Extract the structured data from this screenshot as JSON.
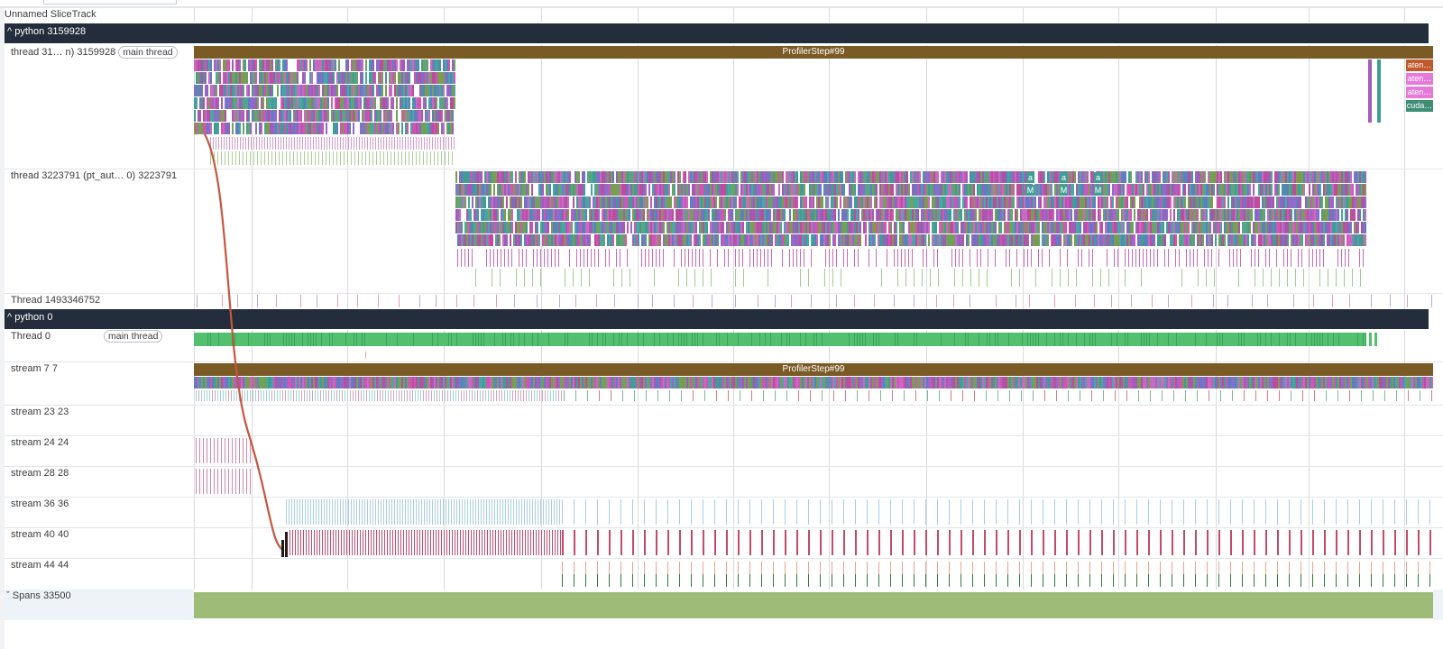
{
  "tracks": {
    "unnamed": "Unnamed SliceTrack",
    "python_main_group": "python 3159928",
    "main_thread_label": "thread 31… n) 3159928",
    "main_thread_pill": "main thread",
    "autograd_thread_label": "thread 3223791 (pt_aut… 0) 3223791",
    "thread_num_label": "Thread 1493346752",
    "python0_group": "python 0",
    "thread0_label": "Thread 0",
    "thread0_pill": "main thread",
    "stream7": "stream 7 7",
    "stream23": "stream 23 23",
    "stream24": "stream 24 24",
    "stream28": "stream 28 28",
    "stream36": "stream 36 36",
    "stream40": "stream 40 40",
    "stream44": "stream 44 44",
    "spans": "Spans 33500"
  },
  "slices": {
    "profiler_step_cpu": "ProfilerStep#99",
    "profiler_step_gpu": "ProfilerStep#99",
    "side_aten_1": "aten…",
    "side_aten_2": "aten…",
    "side_aten_3": "aten…",
    "side_cuda": "cuda…",
    "mini_a": "a",
    "mini_m": "M"
  },
  "icons": {
    "collapse": "chevron-up-icon",
    "expand": "chevron-down-icon"
  },
  "colors": {
    "group_header": "#232d3b",
    "profiler_step": "#7a5a25",
    "thread0_green": "#52c06e",
    "spans_green": "#9fbb78",
    "flow_arrow": "#c8553d"
  }
}
